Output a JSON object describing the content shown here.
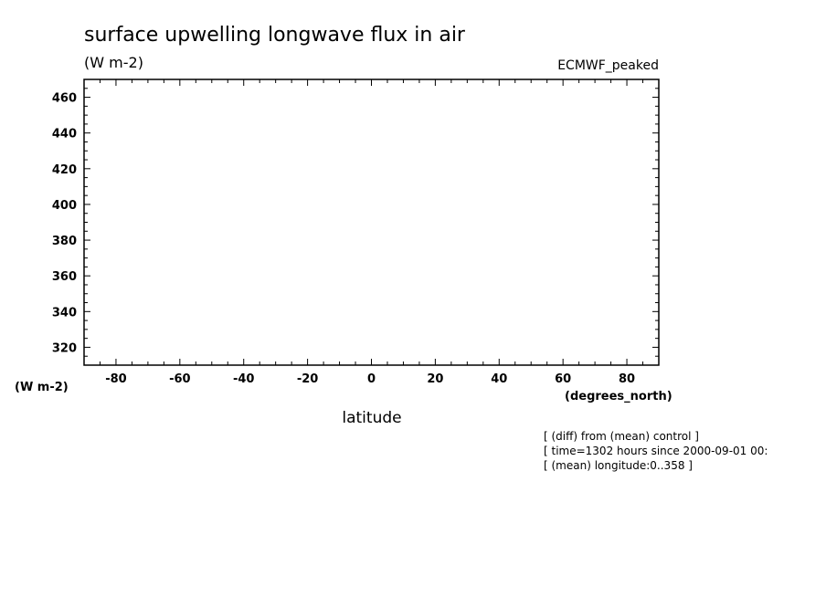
{
  "chart_data": {
    "type": "line",
    "title": "surface upwelling longwave flux in air",
    "subtitle": "(W m-2)",
    "model_label": "ECMWF_peaked",
    "xlabel": "latitude",
    "xunits": "(degrees_north)",
    "yunits": "(W m-2)",
    "xlim": [
      -90,
      90
    ],
    "ylim": [
      310,
      470
    ],
    "x_ticks": [
      -80,
      -60,
      -40,
      -20,
      0,
      20,
      40,
      60,
      80
    ],
    "y_ticks": [
      320,
      340,
      360,
      380,
      400,
      420,
      440,
      460
    ],
    "grid": false,
    "series": [],
    "notes": [
      "[ (diff) from (mean) control ]",
      "[ time=1302 hours since 2000-09-01 00:",
      "[ (mean) longitude:0..358 ]"
    ]
  }
}
